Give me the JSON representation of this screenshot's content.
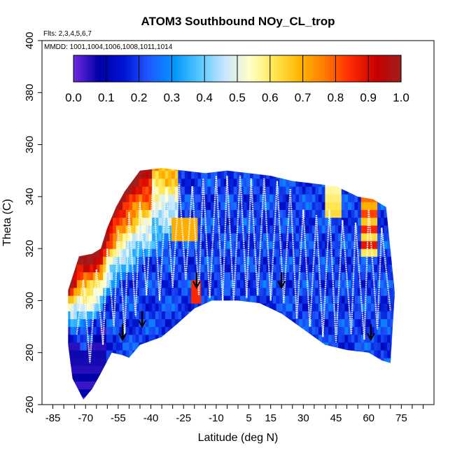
{
  "chart_data": {
    "type": "heatmap",
    "title": "ATOM3 Southbound NOy_CL_trop",
    "flights_label": "Flts: 2,3,4,5,6,7",
    "dates_label": "MMDD: 1001,1004,1006,1008,1011,1014",
    "xlabel": "Latitude (deg N)",
    "ylabel": "Theta (C)",
    "xlim": [
      -90,
      90
    ],
    "ylim": [
      260,
      400
    ],
    "x_tick_labels": [
      "-85",
      "-70",
      "-55",
      "-40",
      "-25",
      "-10",
      "5",
      "15",
      "30",
      "45",
      "60",
      "75"
    ],
    "x_tick_values": [
      -85,
      -70,
      -55,
      -40,
      -25,
      -10,
      5,
      15,
      30,
      45,
      60,
      75
    ],
    "y_tick_labels": [
      "260",
      "280",
      "300",
      "320",
      "340",
      "360",
      "380",
      "400"
    ],
    "y_tick_values": [
      260,
      280,
      300,
      320,
      340,
      360,
      380,
      400
    ],
    "colorbar": {
      "range": [
        0.0,
        1.0
      ],
      "tick_labels": [
        "0.0",
        "0.1",
        "0.2",
        "0.3",
        "0.4",
        "0.5",
        "0.6",
        "0.7",
        "0.8",
        "0.9",
        "1.0"
      ],
      "colors": [
        "#6f2be0",
        "#0000a8",
        "#0014d2",
        "#1e5aff",
        "#0096ff",
        "#55c8ff",
        "#c8e6ff",
        "#ffffc8",
        "#ffe650",
        "#ffb400",
        "#ff7800",
        "#ff2800",
        "#c80000",
        "#a01e1e"
      ]
    },
    "envelope": {
      "bottom": [
        [
          -78,
          283
        ],
        [
          -76,
          270
        ],
        [
          -71,
          262
        ],
        [
          -67,
          266
        ],
        [
          -63,
          272
        ],
        [
          -58,
          280
        ],
        [
          -53,
          279
        ],
        [
          -50,
          278
        ],
        [
          -45,
          283
        ],
        [
          -35,
          286
        ],
        [
          -28,
          291
        ],
        [
          -20,
          297
        ],
        [
          -12,
          300
        ],
        [
          0,
          300
        ],
        [
          10,
          299
        ],
        [
          20,
          295
        ],
        [
          30,
          289
        ],
        [
          40,
          283
        ],
        [
          50,
          281
        ],
        [
          60,
          280
        ],
        [
          66,
          277
        ],
        [
          70,
          276
        ]
      ],
      "top": [
        [
          -78,
          304
        ],
        [
          -73,
          317
        ],
        [
          -67,
          318
        ],
        [
          -63,
          320
        ],
        [
          -60,
          328
        ],
        [
          -56,
          336
        ],
        [
          -52,
          342
        ],
        [
          -45,
          350
        ],
        [
          -35,
          351
        ],
        [
          -25,
          350
        ],
        [
          -15,
          349
        ],
        [
          -5,
          350
        ],
        [
          5,
          349
        ],
        [
          15,
          348
        ],
        [
          25,
          346
        ],
        [
          35,
          345
        ],
        [
          45,
          344
        ],
        [
          55,
          340
        ],
        [
          62,
          339
        ],
        [
          68,
          336
        ],
        [
          72,
          303
        ]
      ]
    },
    "profile_minima": [
      [
        -74,
        287
      ],
      [
        -68,
        276
      ],
      [
        -62,
        283
      ],
      [
        -57,
        290
      ],
      [
        -52,
        287
      ],
      [
        -47,
        294
      ],
      [
        -42,
        302
      ],
      [
        -36,
        300
      ],
      [
        -30,
        305
      ],
      [
        -24,
        308
      ],
      [
        -18,
        302
      ],
      [
        -13,
        301
      ],
      [
        -7,
        300
      ],
      [
        -2,
        300
      ],
      [
        4,
        301
      ],
      [
        9,
        302
      ],
      [
        15,
        300
      ],
      [
        21,
        299
      ],
      [
        27,
        293
      ],
      [
        33,
        290
      ],
      [
        39,
        286
      ],
      [
        45,
        284
      ],
      [
        52,
        287
      ],
      [
        58,
        285
      ],
      [
        64,
        289
      ],
      [
        70,
        296
      ]
    ],
    "profile_maxima": [
      [
        -71,
        308
      ],
      [
        -65,
        312
      ],
      [
        -60,
        320
      ],
      [
        -55,
        327
      ],
      [
        -50,
        334
      ],
      [
        -45,
        338
      ],
      [
        -39,
        346
      ],
      [
        -33,
        343
      ],
      [
        -27,
        345
      ],
      [
        -21,
        344
      ],
      [
        -16,
        347
      ],
      [
        -10,
        348
      ],
      [
        -5,
        348
      ],
      [
        1,
        348
      ],
      [
        6,
        347
      ],
      [
        12,
        347
      ],
      [
        18,
        346
      ],
      [
        24,
        343
      ],
      [
        30,
        335
      ],
      [
        36,
        333
      ],
      [
        42,
        335
      ],
      [
        48,
        331
      ],
      [
        54,
        330
      ],
      [
        60,
        335
      ],
      [
        66,
        328
      ]
    ],
    "arrows": [
      [
        -53,
        285
      ],
      [
        -44,
        290
      ],
      [
        -19,
        305
      ],
      [
        20,
        305
      ],
      [
        61,
        285
      ]
    ],
    "value_features": [
      {
        "region": "high-latitude south, upper level",
        "value": 0.85
      },
      {
        "region": "southern midlatitudes, 335-350",
        "value": 0.9
      },
      {
        "region": "southern subtropics, 320-340",
        "value": 0.75
      },
      {
        "region": "tropics and northern hemisphere",
        "value": 0.2
      },
      {
        "region": "near 45N, 335-345",
        "value": 0.6
      },
      {
        "region": "near 60N, 320-340",
        "value": 0.85
      },
      {
        "region": "south polar lower levels",
        "value": 0.05
      }
    ]
  }
}
